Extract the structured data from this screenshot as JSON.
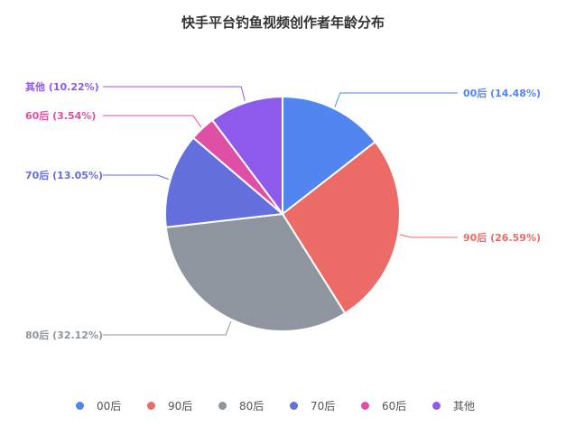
{
  "chart_data": {
    "type": "pie",
    "title": "快手平台钓鱼视频创作者年龄分布",
    "slices": [
      {
        "name": "00后",
        "value": 14.48,
        "label": "00后 (14.48%)",
        "color": "#5185f0"
      },
      {
        "name": "90后",
        "value": 26.59,
        "label": "90后 (26.59%)",
        "color": "#ec6b66"
      },
      {
        "name": "80后",
        "value": 32.12,
        "label": "80后 (32.12%)",
        "color": "#8e959f"
      },
      {
        "name": "70后",
        "value": 13.05,
        "label": "70后 (13.05%)",
        "color": "#626fdc"
      },
      {
        "name": "60后",
        "value": 3.54,
        "label": "60后 (3.54%)",
        "color": "#df4fa5"
      },
      {
        "name": "其他",
        "value": 10.22,
        "label": "其他 (10.22%)",
        "color": "#8e5aeb"
      }
    ],
    "legend_position": "bottom",
    "start_angle": "top-clockwise"
  }
}
